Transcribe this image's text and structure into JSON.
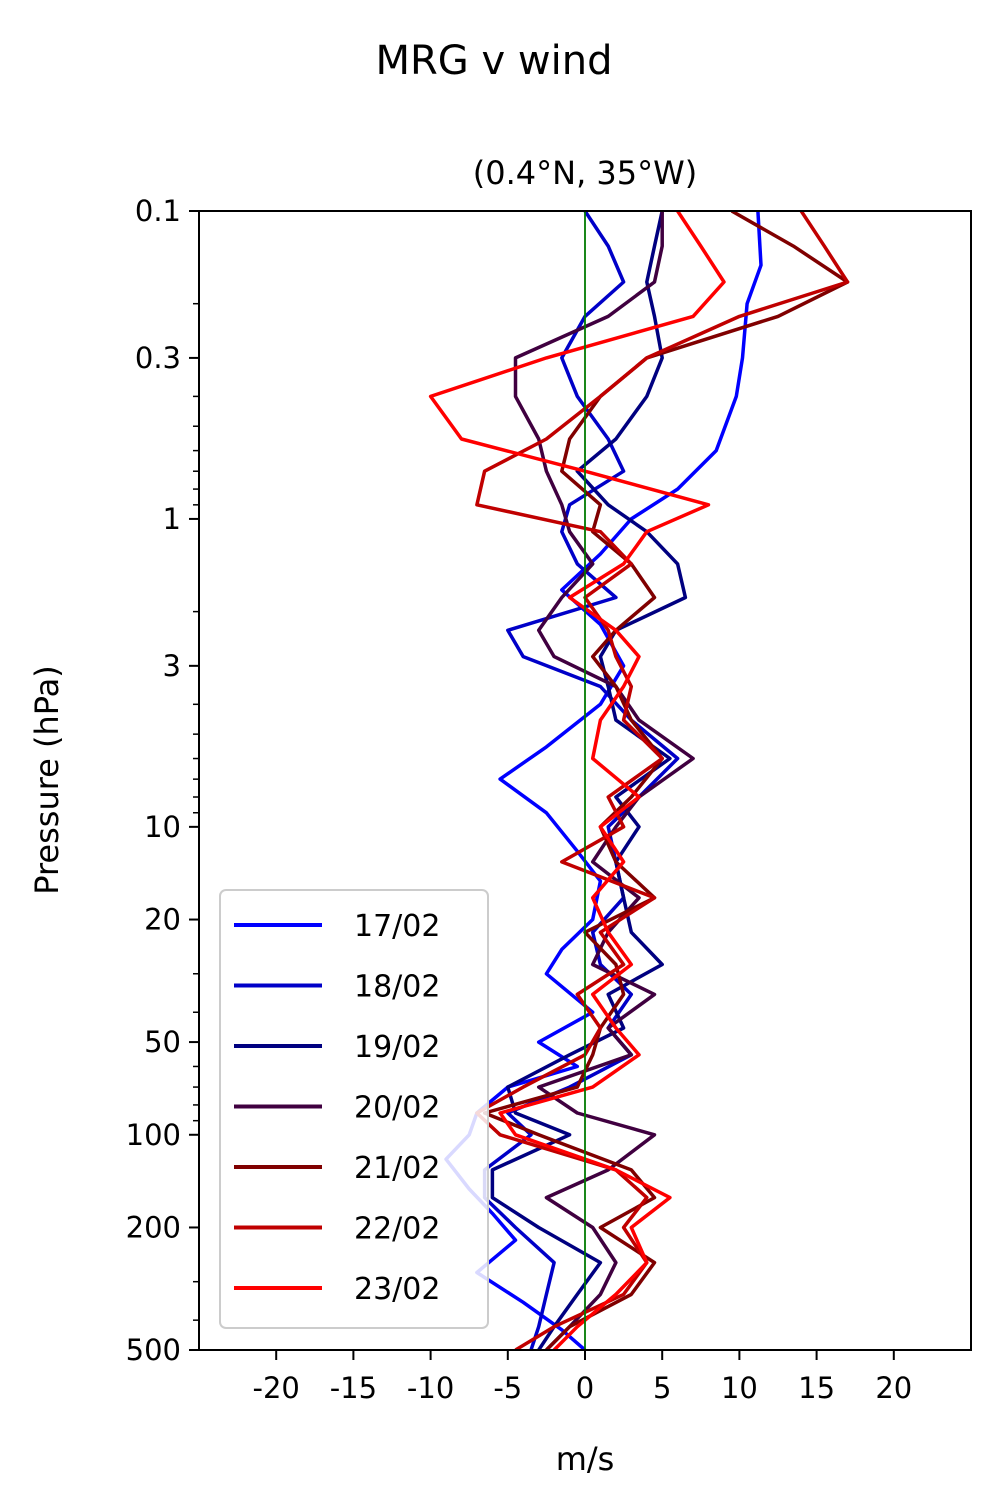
{
  "chart_data": {
    "type": "line",
    "suptitle": "MRG v wind",
    "title": "(0.4°N, 35°W)",
    "xlabel": "m/s",
    "ylabel": "Pressure (hPa)",
    "xlim": [
      -25,
      25
    ],
    "ylim": [
      500,
      0.1
    ],
    "yscale": "log",
    "x_ticks": [
      -20,
      -15,
      -10,
      -5,
      0,
      5,
      10,
      15,
      20
    ],
    "x_tick_labels": [
      "-20",
      "-15",
      "-10",
      "-5",
      "0",
      "5",
      "10",
      "15",
      "20"
    ],
    "y_ticks": [
      0.1,
      0.3,
      1,
      3,
      10,
      20,
      50,
      100,
      200,
      500
    ],
    "y_tick_labels": [
      "0.1",
      "0.3",
      "1",
      "3",
      "10",
      "20",
      "50",
      "100",
      "200",
      "500"
    ],
    "zero_line": {
      "x": 0,
      "color": "#007a00"
    },
    "legend_position": "lower-left",
    "grid": false,
    "series": [
      {
        "name": "17/02",
        "color": "#0000ff",
        "p": [
          0.1,
          0.15,
          0.2,
          0.3,
          0.4,
          0.6,
          0.8,
          1.0,
          1.3,
          1.7,
          2.2,
          3.0,
          4.0,
          5.5,
          7.0,
          9.0,
          12,
          15,
          20,
          25,
          30,
          40,
          50,
          60,
          70,
          85,
          100,
          120,
          150,
          180,
          220,
          280,
          350,
          430,
          500
        ],
        "v": [
          11.2,
          11.4,
          10.5,
          10.2,
          9.8,
          8.5,
          6.0,
          3.0,
          1.0,
          -1.5,
          1.0,
          2.5,
          1.0,
          -2.5,
          -5.5,
          -2.5,
          -0.5,
          1.0,
          0.5,
          -1.5,
          -2.5,
          0.5,
          -3.0,
          -0.5,
          -5.0,
          -7.0,
          -7.5,
          -9.0,
          -7.5,
          -6.0,
          -4.5,
          -7.0,
          -4.0,
          -1.5,
          0.0
        ]
      },
      {
        "name": "18/02",
        "color": "#0000c8",
        "p": [
          0.1,
          0.13,
          0.17,
          0.22,
          0.3,
          0.4,
          0.55,
          0.7,
          0.9,
          1.1,
          1.4,
          1.8,
          2.3,
          2.8,
          3.5,
          4.5,
          6,
          8,
          10,
          13,
          17,
          22,
          28,
          35,
          45,
          55,
          70,
          85,
          100,
          130,
          160,
          200,
          260,
          330,
          420,
          500
        ],
        "v": [
          0.0,
          1.5,
          2.5,
          0.0,
          -1.5,
          -0.5,
          1.5,
          2.5,
          -1.0,
          -1.5,
          -0.5,
          2.0,
          -5.0,
          -4.0,
          1.0,
          3.0,
          6.0,
          3.5,
          1.5,
          2.0,
          2.5,
          0.5,
          1.0,
          3.0,
          1.5,
          3.0,
          -1.0,
          -5.0,
          -3.5,
          -6.5,
          -6.5,
          -4.5,
          -2.0,
          -2.5,
          -3.0,
          -3.5
        ]
      },
      {
        "name": "19/02",
        "color": "#000080",
        "p": [
          0.1,
          0.13,
          0.17,
          0.22,
          0.3,
          0.4,
          0.55,
          0.7,
          0.9,
          1.1,
          1.4,
          1.8,
          2.3,
          2.8,
          3.5,
          4.5,
          6,
          8,
          10,
          13,
          17,
          22,
          28,
          35,
          45,
          55,
          70,
          85,
          100,
          130,
          160,
          200,
          260,
          330,
          420,
          500
        ],
        "v": [
          5.0,
          4.5,
          4.0,
          4.5,
          5.0,
          4.0,
          2.0,
          -0.5,
          1.5,
          4.0,
          6.0,
          6.5,
          2.0,
          1.0,
          1.5,
          2.0,
          5.5,
          2.0,
          3.5,
          2.0,
          2.5,
          3.0,
          5.0,
          1.5,
          2.5,
          -1.0,
          -5.0,
          -4.5,
          -1.0,
          -6.0,
          -6.0,
          -3.0,
          1.0,
          -0.5,
          -2.0,
          -3.0
        ]
      },
      {
        "name": "20/02",
        "color": "#400040",
        "p": [
          0.1,
          0.13,
          0.17,
          0.22,
          0.3,
          0.4,
          0.55,
          0.7,
          0.9,
          1.1,
          1.4,
          1.8,
          2.3,
          2.8,
          3.5,
          4.5,
          6,
          8,
          10,
          13,
          17,
          22,
          28,
          35,
          45,
          55,
          70,
          85,
          100,
          130,
          160,
          200,
          260,
          330,
          420,
          500
        ],
        "v": [
          5.0,
          5.0,
          4.5,
          1.5,
          -4.5,
          -4.5,
          -3.0,
          -2.5,
          -1.5,
          -1.0,
          0.5,
          -1.5,
          -3.0,
          -2.0,
          2.0,
          3.5,
          7.0,
          3.5,
          2.0,
          0.5,
          3.5,
          1.5,
          0.5,
          4.5,
          1.5,
          3.0,
          -3.0,
          -0.5,
          4.5,
          1.5,
          -2.5,
          0.5,
          2.0,
          1.0,
          -1.0,
          -2.5
        ]
      },
      {
        "name": "21/02",
        "color": "#800000",
        "p": [
          0.1,
          0.13,
          0.17,
          0.22,
          0.3,
          0.4,
          0.55,
          0.7,
          0.9,
          1.1,
          1.4,
          1.8,
          2.3,
          2.8,
          3.5,
          4.5,
          6,
          8,
          10,
          13,
          17,
          22,
          28,
          35,
          45,
          55,
          70,
          85,
          100,
          130,
          160,
          200,
          260,
          330,
          420,
          500
        ],
        "v": [
          9.5,
          13.5,
          17.0,
          12.5,
          4.0,
          1.0,
          -1.0,
          -1.5,
          1.0,
          0.5,
          3.0,
          4.5,
          2.0,
          0.5,
          2.0,
          3.0,
          5.0,
          3.0,
          1.0,
          2.0,
          4.5,
          0.0,
          2.0,
          2.5,
          1.0,
          0.5,
          -0.5,
          -6.5,
          -3.0,
          3.0,
          4.5,
          1.0,
          4.5,
          3.0,
          -1.0,
          -2.5
        ]
      },
      {
        "name": "22/02",
        "color": "#c00000",
        "p": [
          0.1,
          0.13,
          0.17,
          0.22,
          0.3,
          0.4,
          0.55,
          0.7,
          0.9,
          1.1,
          1.4,
          1.8,
          2.3,
          2.8,
          3.5,
          4.5,
          6,
          8,
          10,
          13,
          17,
          22,
          28,
          35,
          45,
          55,
          70,
          85,
          100,
          130,
          160,
          200,
          260,
          330,
          420,
          500
        ],
        "v": [
          14.0,
          15.5,
          17.0,
          10.0,
          4.0,
          1.0,
          -2.5,
          -6.5,
          -7.0,
          1.0,
          3.0,
          0.0,
          1.5,
          2.0,
          3.0,
          2.5,
          5.0,
          1.5,
          2.5,
          -1.5,
          4.5,
          1.0,
          2.5,
          -0.5,
          1.0,
          0.0,
          -4.0,
          -7.0,
          -5.5,
          2.0,
          4.0,
          2.5,
          4.0,
          2.5,
          -2.0,
          -4.5
        ]
      },
      {
        "name": "23/02",
        "color": "#ff0000",
        "p": [
          0.1,
          0.13,
          0.17,
          0.22,
          0.3,
          0.4,
          0.55,
          0.7,
          0.9,
          1.1,
          1.4,
          1.8,
          2.3,
          2.8,
          3.5,
          4.5,
          6,
          8,
          10,
          13,
          17,
          22,
          28,
          35,
          45,
          55,
          70,
          85,
          100,
          130,
          160,
          200,
          260,
          330,
          420,
          500
        ],
        "v": [
          6.0,
          7.5,
          9.0,
          7.0,
          -2.5,
          -10.0,
          -8.0,
          0.0,
          8.0,
          4.0,
          2.5,
          -1.0,
          2.0,
          3.5,
          2.5,
          1.0,
          0.5,
          3.5,
          1.0,
          2.5,
          0.5,
          1.5,
          3.0,
          0.5,
          2.0,
          3.5,
          0.5,
          -5.5,
          -4.5,
          2.0,
          5.5,
          3.0,
          4.0,
          2.0,
          -0.5,
          -2.0
        ]
      }
    ]
  }
}
